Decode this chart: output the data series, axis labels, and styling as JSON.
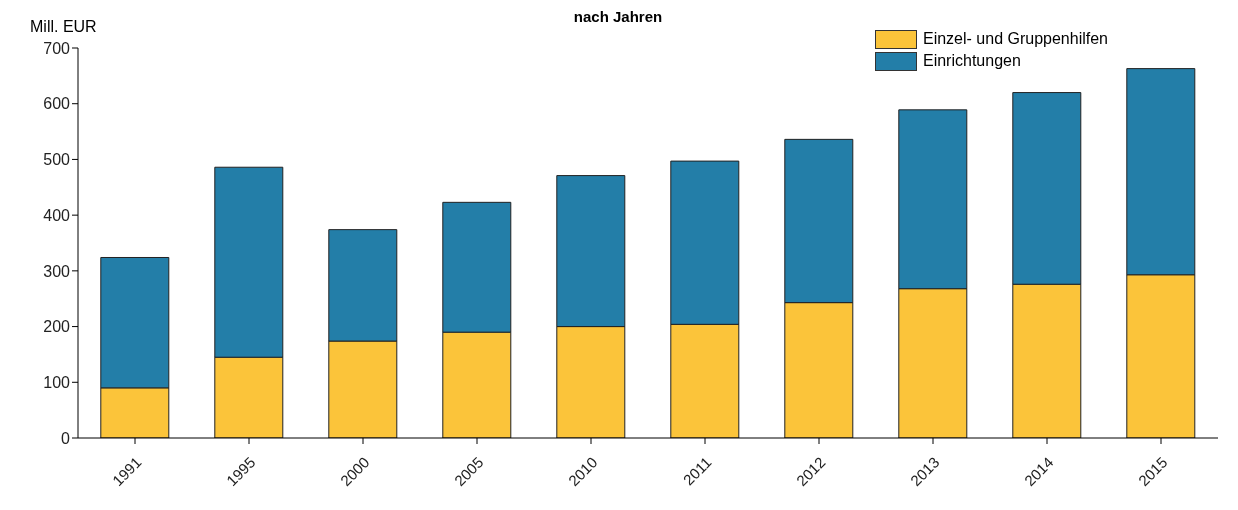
{
  "chart_data": {
    "type": "bar",
    "title": "nach Jahren",
    "ylabel": "Mill. EUR",
    "stacked": true,
    "categories": [
      "1991",
      "1995",
      "2000",
      "2005",
      "2010",
      "2011",
      "2012",
      "2013",
      "2014",
      "2015"
    ],
    "series": [
      {
        "name": "Einzel- und Gruppenhilfen",
        "color": "#fbc43a",
        "values": [
          90,
          145,
          174,
          190,
          200,
          204,
          243,
          268,
          276,
          293
        ]
      },
      {
        "name": "Einrichtungen",
        "color": "#237ea8",
        "values": [
          234,
          341,
          200,
          233,
          271,
          293,
          293,
          321,
          344,
          370
        ]
      }
    ],
    "ylim": [
      0,
      700
    ],
    "yticks": [
      0,
      100,
      200,
      300,
      400,
      500,
      600,
      700
    ],
    "grid": false,
    "legend": "top right"
  }
}
